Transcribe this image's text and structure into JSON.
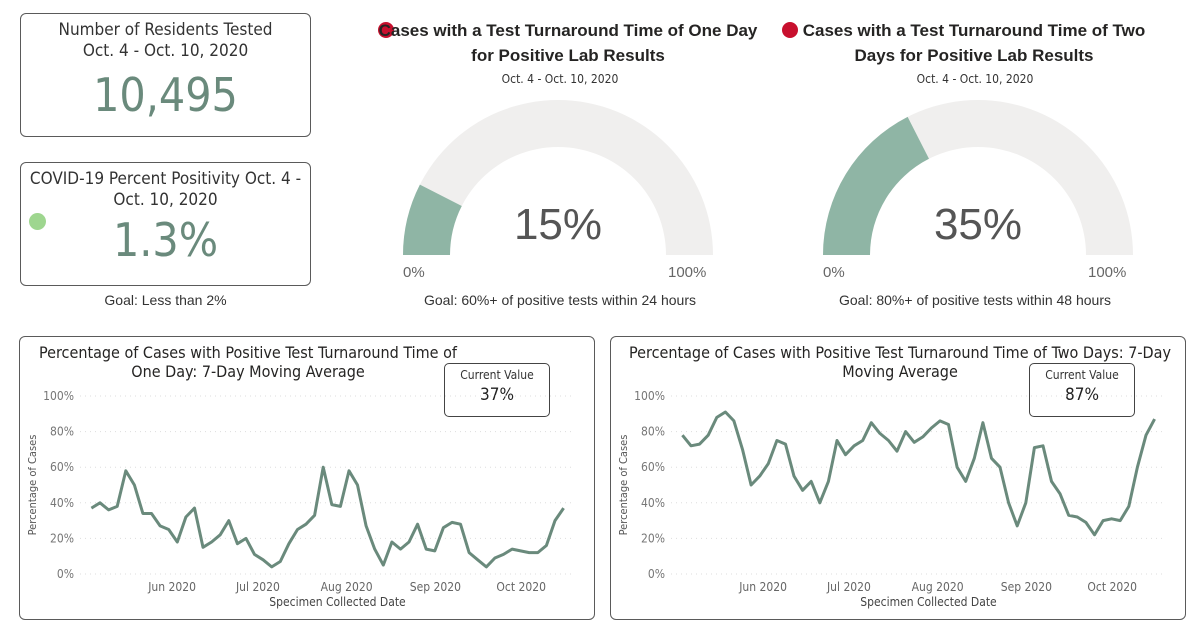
{
  "kpis": {
    "residents_tested": {
      "title": "Number of Residents Tested",
      "date_range": "Oct. 4 - Oct. 10, 2020",
      "value": "10,495"
    },
    "positivity": {
      "title": "COVID-19 Percent Positivity Oct. 4 - Oct. 10, 2020",
      "value": "1.3%",
      "status_color": "#9ed68f",
      "goal": "Goal: Less than 2%"
    }
  },
  "gauges": [
    {
      "title": "Cases with a Test Turnaround Time of One Day for Positive Lab Results",
      "date_range": "Oct. 4 - Oct. 10, 2020",
      "value": 15,
      "value_label": "15%",
      "min_label": "0%",
      "max_label": "100%",
      "goal": "Goal: 60%+ of positive tests within 24 hours",
      "status_color": "#c8102e"
    },
    {
      "title": "Cases with a Test Turnaround Time of Two Days for Positive Lab Results",
      "date_range": "Oct. 4 - Oct. 10, 2020",
      "value": 35,
      "value_label": "35%",
      "min_label": "0%",
      "max_label": "100%",
      "goal": "Goal: 80%+ of positive tests within 48 hours",
      "status_color": "#c8102e"
    }
  ],
  "colors": {
    "fill": "#8fb5a5",
    "track": "#f0efee",
    "line": "#6a8a7c"
  },
  "chart_data": [
    {
      "type": "line",
      "title": "Percentage of Cases with Positive Test Turnaround Time of One Day: 7-Day Moving Average",
      "current_value_label": "Current Value",
      "current_value": "37%",
      "xlabel": "Specimen Collected Date",
      "ylabel": "Percentage of Cases",
      "ylim": [
        0,
        100
      ],
      "y_ticks": [
        "0%",
        "20%",
        "40%",
        "60%",
        "80%",
        "100%"
      ],
      "x_ticks": [
        "Jun 2020",
        "Jul 2020",
        "Aug 2020",
        "Sep 2020",
        "Oct 2020"
      ],
      "grid": true,
      "x": [
        "2020-05-08",
        "2020-05-11",
        "2020-05-14",
        "2020-05-17",
        "2020-05-20",
        "2020-05-23",
        "2020-05-26",
        "2020-05-29",
        "2020-06-01",
        "2020-06-04",
        "2020-06-07",
        "2020-06-10",
        "2020-06-13",
        "2020-06-16",
        "2020-06-19",
        "2020-06-22",
        "2020-06-25",
        "2020-06-28",
        "2020-07-01",
        "2020-07-04",
        "2020-07-07",
        "2020-07-10",
        "2020-07-13",
        "2020-07-16",
        "2020-07-19",
        "2020-07-22",
        "2020-07-25",
        "2020-07-28",
        "2020-07-31",
        "2020-08-03",
        "2020-08-06",
        "2020-08-09",
        "2020-08-12",
        "2020-08-15",
        "2020-08-18",
        "2020-08-21",
        "2020-08-24",
        "2020-08-27",
        "2020-08-30",
        "2020-09-02",
        "2020-09-05",
        "2020-09-08",
        "2020-09-11",
        "2020-09-14",
        "2020-09-17",
        "2020-09-20",
        "2020-09-23",
        "2020-09-26",
        "2020-09-29",
        "2020-10-02",
        "2020-10-05",
        "2020-10-08",
        "2020-10-11",
        "2020-10-14",
        "2020-10-17",
        "2020-10-20"
      ],
      "values": [
        37,
        40,
        36,
        38,
        58,
        50,
        34,
        34,
        27,
        25,
        18,
        32,
        37,
        15,
        18,
        22,
        30,
        17,
        20,
        11,
        8,
        4,
        7,
        17,
        25,
        28,
        33,
        60,
        39,
        38,
        58,
        50,
        27,
        14,
        5,
        18,
        14,
        18,
        28,
        14,
        13,
        26,
        29,
        28,
        12,
        8,
        4,
        9,
        11,
        14,
        13,
        12,
        12,
        16,
        30,
        37
      ]
    },
    {
      "type": "line",
      "title": "Percentage of Cases with Positive Test Turnaround Time of Two Days: 7-Day Moving Average",
      "current_value_label": "Current Value",
      "current_value": "87%",
      "xlabel": "Specimen Collected Date",
      "ylabel": "Percentage of Cases",
      "ylim": [
        0,
        100
      ],
      "y_ticks": [
        "0%",
        "20%",
        "40%",
        "60%",
        "80%",
        "100%"
      ],
      "x_ticks": [
        "Jun 2020",
        "Jul 2020",
        "Aug 2020",
        "Sep 2020",
        "Oct 2020"
      ],
      "grid": true,
      "x": [
        "2020-05-08",
        "2020-05-11",
        "2020-05-14",
        "2020-05-17",
        "2020-05-20",
        "2020-05-23",
        "2020-05-26",
        "2020-05-29",
        "2020-06-01",
        "2020-06-04",
        "2020-06-07",
        "2020-06-10",
        "2020-06-13",
        "2020-06-16",
        "2020-06-19",
        "2020-06-22",
        "2020-06-25",
        "2020-06-28",
        "2020-07-01",
        "2020-07-04",
        "2020-07-07",
        "2020-07-10",
        "2020-07-13",
        "2020-07-16",
        "2020-07-19",
        "2020-07-22",
        "2020-07-25",
        "2020-07-28",
        "2020-07-31",
        "2020-08-03",
        "2020-08-06",
        "2020-08-09",
        "2020-08-12",
        "2020-08-15",
        "2020-08-18",
        "2020-08-21",
        "2020-08-24",
        "2020-08-27",
        "2020-08-30",
        "2020-09-02",
        "2020-09-05",
        "2020-09-08",
        "2020-09-11",
        "2020-09-14",
        "2020-09-17",
        "2020-09-20",
        "2020-09-23",
        "2020-09-26",
        "2020-09-29",
        "2020-10-02",
        "2020-10-05",
        "2020-10-08",
        "2020-10-11",
        "2020-10-14",
        "2020-10-17",
        "2020-10-20"
      ],
      "values": [
        78,
        72,
        73,
        78,
        88,
        91,
        86,
        70,
        50,
        55,
        62,
        75,
        73,
        55,
        47,
        52,
        40,
        52,
        75,
        67,
        72,
        75,
        85,
        79,
        75,
        69,
        80,
        74,
        77,
        82,
        86,
        84,
        60,
        52,
        65,
        85,
        65,
        60,
        40,
        27,
        40,
        71,
        72,
        52,
        45,
        33,
        32,
        29,
        22,
        30,
        31,
        30,
        38,
        60,
        78,
        87
      ]
    }
  ]
}
